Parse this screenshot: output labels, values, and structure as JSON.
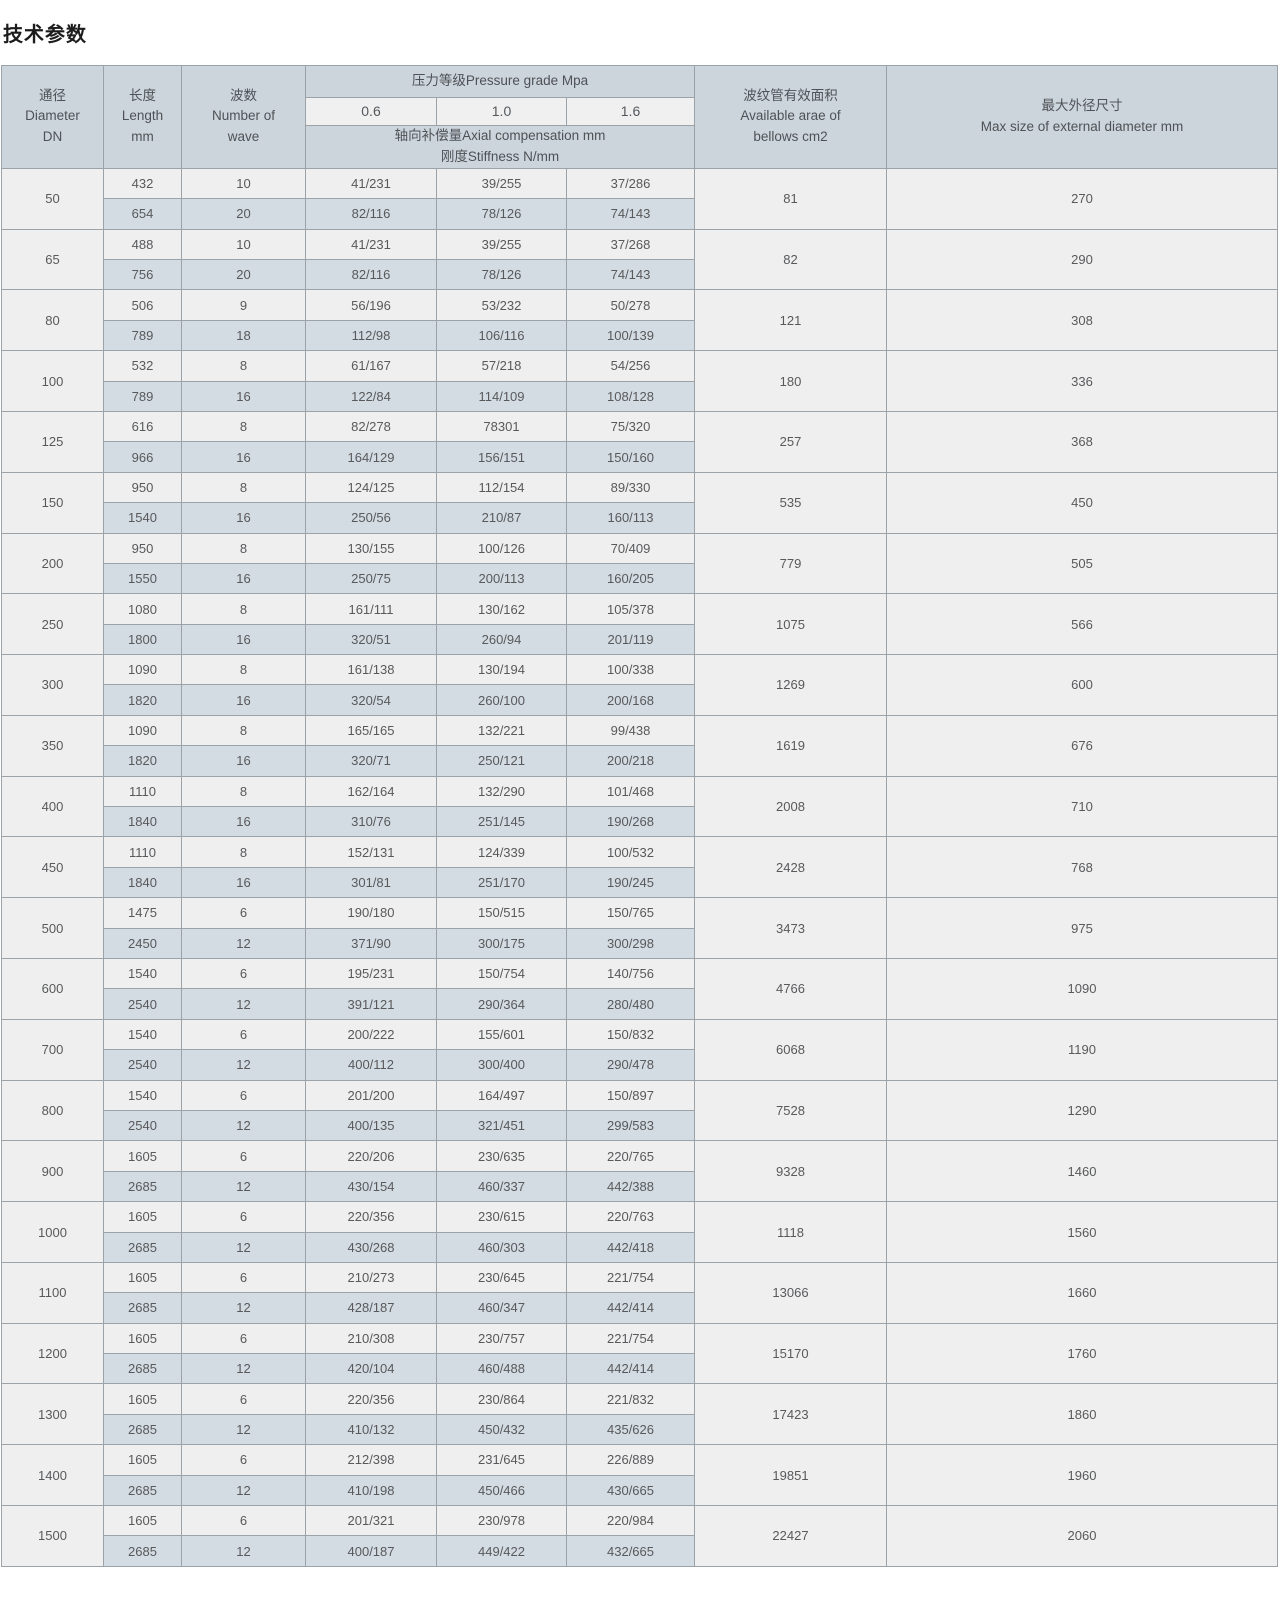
{
  "page": {
    "title": "技术参数"
  },
  "table": {
    "header": {
      "diameter": "通径\nDiameter\nDN",
      "length": "长度\nLength\nmm",
      "wave": "波数\nNumber of\nwave",
      "pressure_grade": "压力等级Pressure grade Mpa",
      "grades": [
        "0.6",
        "1.0",
        "1.6"
      ],
      "compensation": "轴向补偿量Axial compensation mm\n刚度Stiffness N/mm",
      "bellows_area": "波纹管有效面积\nAvailable arae of\nbellows cm2",
      "max_diameter": "最大外径尺寸\nMax size of external diameter mm"
    },
    "rows": [
      {
        "dn": "50",
        "area": "81",
        "max": "270",
        "variants": [
          [
            "432",
            "10",
            "41/231",
            "39/255",
            "37/286"
          ],
          [
            "654",
            "20",
            "82/116",
            "78/126",
            "74/143"
          ]
        ]
      },
      {
        "dn": "65",
        "area": "82",
        "max": "290",
        "variants": [
          [
            "488",
            "10",
            "41/231",
            "39/255",
            "37/268"
          ],
          [
            "756",
            "20",
            "82/116",
            "78/126",
            "74/143"
          ]
        ]
      },
      {
        "dn": "80",
        "area": "121",
        "max": "308",
        "variants": [
          [
            "506",
            "9",
            "56/196",
            "53/232",
            "50/278"
          ],
          [
            "789",
            "18",
            "112/98",
            "106/116",
            "100/139"
          ]
        ]
      },
      {
        "dn": "100",
        "area": "180",
        "max": "336",
        "variants": [
          [
            "532",
            "8",
            "61/167",
            "57/218",
            "54/256"
          ],
          [
            "789",
            "16",
            "122/84",
            "114/109",
            "108/128"
          ]
        ]
      },
      {
        "dn": "125",
        "area": "257",
        "max": "368",
        "variants": [
          [
            "616",
            "8",
            "82/278",
            "78301",
            "75/320"
          ],
          [
            "966",
            "16",
            "164/129",
            "156/151",
            "150/160"
          ]
        ]
      },
      {
        "dn": "150",
        "area": "535",
        "max": "450",
        "variants": [
          [
            "950",
            "8",
            "124/125",
            "112/154",
            "89/330"
          ],
          [
            "1540",
            "16",
            "250/56",
            "210/87",
            "160/113"
          ]
        ]
      },
      {
        "dn": "200",
        "area": "779",
        "max": "505",
        "variants": [
          [
            "950",
            "8",
            "130/155",
            "100/126",
            "70/409"
          ],
          [
            "1550",
            "16",
            "250/75",
            "200/113",
            "160/205"
          ]
        ]
      },
      {
        "dn": "250",
        "area": "1075",
        "max": "566",
        "variants": [
          [
            "1080",
            "8",
            "161/111",
            "130/162",
            "105/378"
          ],
          [
            "1800",
            "16",
            "320/51",
            "260/94",
            "201/119"
          ]
        ]
      },
      {
        "dn": "300",
        "area": "1269",
        "max": "600",
        "variants": [
          [
            "1090",
            "8",
            "161/138",
            "130/194",
            "100/338"
          ],
          [
            "1820",
            "16",
            "320/54",
            "260/100",
            "200/168"
          ]
        ]
      },
      {
        "dn": "350",
        "area": "1619",
        "max": "676",
        "variants": [
          [
            "1090",
            "8",
            "165/165",
            "132/221",
            "99/438"
          ],
          [
            "1820",
            "16",
            "320/71",
            "250/121",
            "200/218"
          ]
        ]
      },
      {
        "dn": "400",
        "area": "2008",
        "max": "710",
        "variants": [
          [
            "1110",
            "8",
            "162/164",
            "132/290",
            "101/468"
          ],
          [
            "1840",
            "16",
            "310/76",
            "251/145",
            "190/268"
          ]
        ]
      },
      {
        "dn": "450",
        "area": "2428",
        "max": "768",
        "variants": [
          [
            "1110",
            "8",
            "152/131",
            "124/339",
            "100/532"
          ],
          [
            "1840",
            "16",
            "301/81",
            "251/170",
            "190/245"
          ]
        ]
      },
      {
        "dn": "500",
        "area": "3473",
        "max": "975",
        "variants": [
          [
            "1475",
            "6",
            "190/180",
            "150/515",
            "150/765"
          ],
          [
            "2450",
            "12",
            "371/90",
            "300/175",
            "300/298"
          ]
        ]
      },
      {
        "dn": "600",
        "area": "4766",
        "max": "1090",
        "variants": [
          [
            "1540",
            "6",
            "195/231",
            "150/754",
            "140/756"
          ],
          [
            "2540",
            "12",
            "391/121",
            "290/364",
            "280/480"
          ]
        ]
      },
      {
        "dn": "700",
        "area": "6068",
        "max": "1190",
        "variants": [
          [
            "1540",
            "6",
            "200/222",
            "155/601",
            "150/832"
          ],
          [
            "2540",
            "12",
            "400/112",
            "300/400",
            "290/478"
          ]
        ]
      },
      {
        "dn": "800",
        "area": "7528",
        "max": "1290",
        "variants": [
          [
            "1540",
            "6",
            "201/200",
            "164/497",
            "150/897"
          ],
          [
            "2540",
            "12",
            "400/135",
            "321/451",
            "299/583"
          ]
        ]
      },
      {
        "dn": "900",
        "area": "9328",
        "max": "1460",
        "variants": [
          [
            "1605",
            "6",
            "220/206",
            "230/635",
            "220/765"
          ],
          [
            "2685",
            "12",
            "430/154",
            "460/337",
            "442/388"
          ]
        ]
      },
      {
        "dn": "1000",
        "area": "1118",
        "max": "1560",
        "variants": [
          [
            "1605",
            "6",
            "220/356",
            "230/615",
            "220/763"
          ],
          [
            "2685",
            "12",
            "430/268",
            "460/303",
            "442/418"
          ]
        ]
      },
      {
        "dn": "1100",
        "area": "13066",
        "max": "1660",
        "variants": [
          [
            "1605",
            "6",
            "210/273",
            "230/645",
            "221/754"
          ],
          [
            "2685",
            "12",
            "428/187",
            "460/347",
            "442/414"
          ]
        ]
      },
      {
        "dn": "1200",
        "area": "15170",
        "max": "1760",
        "variants": [
          [
            "1605",
            "6",
            "210/308",
            "230/757",
            "221/754"
          ],
          [
            "2685",
            "12",
            "420/104",
            "460/488",
            "442/414"
          ]
        ]
      },
      {
        "dn": "1300",
        "area": "17423",
        "max": "1860",
        "variants": [
          [
            "1605",
            "6",
            "220/356",
            "230/864",
            "221/832"
          ],
          [
            "2685",
            "12",
            "410/132",
            "450/432",
            "435/626"
          ]
        ]
      },
      {
        "dn": "1400",
        "area": "19851",
        "max": "1960",
        "variants": [
          [
            "1605",
            "6",
            "212/398",
            "231/645",
            "226/889"
          ],
          [
            "2685",
            "12",
            "410/198",
            "450/466",
            "430/665"
          ]
        ]
      },
      {
        "dn": "1500",
        "area": "22427",
        "max": "2060",
        "variants": [
          [
            "1605",
            "6",
            "201/321",
            "230/978",
            "220/984"
          ],
          [
            "2685",
            "12",
            "400/187",
            "449/422",
            "432/665"
          ]
        ]
      }
    ]
  },
  "colors": {
    "header_bg": "#cdd5dc",
    "subheader_bg": "#f0f0f0",
    "row_light": "#efefef",
    "row_shaded": "#d4dce3",
    "border": "#9ba2a8"
  }
}
